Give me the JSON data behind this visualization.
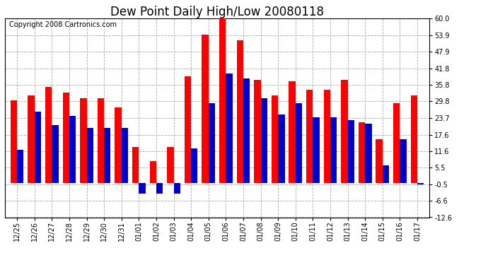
{
  "title": "Dew Point Daily High/Low 20080118",
  "copyright": "Copyright 2008 Cartronics.com",
  "dates": [
    "12/25",
    "12/26",
    "12/27",
    "12/28",
    "12/29",
    "12/30",
    "12/31",
    "01/01",
    "01/02",
    "01/03",
    "01/04",
    "01/05",
    "01/06",
    "01/07",
    "01/08",
    "01/09",
    "01/10",
    "01/11",
    "01/12",
    "01/13",
    "01/14",
    "01/15",
    "01/16",
    "01/17"
  ],
  "highs": [
    30.0,
    32.0,
    35.0,
    33.0,
    31.0,
    31.0,
    27.5,
    13.0,
    8.0,
    13.0,
    39.0,
    54.0,
    60.5,
    52.0,
    37.5,
    32.0,
    37.0,
    34.0,
    34.0,
    37.5,
    22.0,
    16.0,
    29.0,
    32.0
  ],
  "lows": [
    12.0,
    26.0,
    21.0,
    24.5,
    20.0,
    20.0,
    20.0,
    -4.0,
    -4.0,
    -4.0,
    12.5,
    29.0,
    40.0,
    38.0,
    31.0,
    25.0,
    29.0,
    24.0,
    24.0,
    23.0,
    21.5,
    6.5,
    16.0,
    -0.5
  ],
  "high_color": "#ff0000",
  "low_color": "#0000cc",
  "bg_color": "#ffffff",
  "grid_color": "#aaaaaa",
  "ylim": [
    -12.6,
    60.0
  ],
  "yticks": [
    -12.6,
    -6.6,
    -0.5,
    5.5,
    11.6,
    17.6,
    23.7,
    29.8,
    35.8,
    41.8,
    47.9,
    53.9,
    60.0
  ],
  "title_fontsize": 12,
  "copyright_fontsize": 7,
  "bar_width": 0.38
}
